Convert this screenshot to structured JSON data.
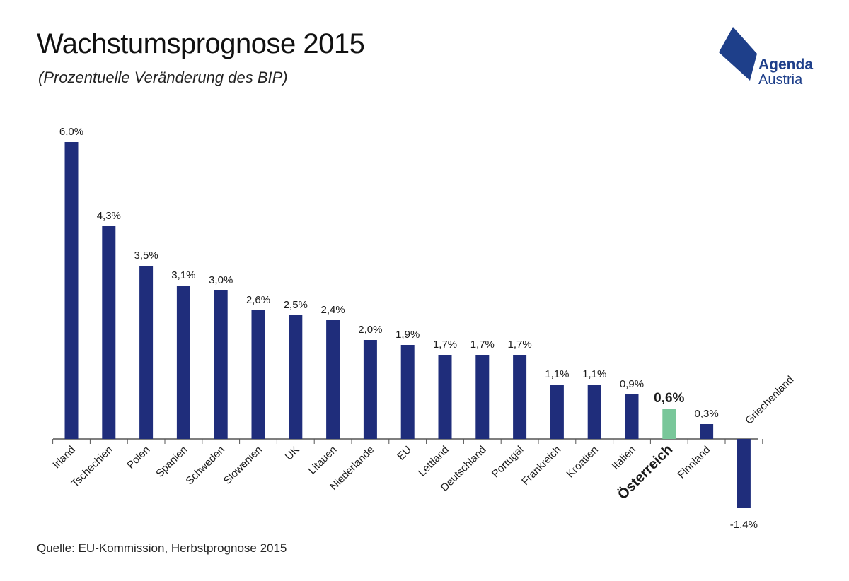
{
  "header": {
    "title": "Wachstumsprognose 2015",
    "subtitle": "(Prozentuelle Veränderung des BIP)"
  },
  "logo": {
    "line1": "Agenda",
    "line2": "Austria",
    "color": "#1e3f8a"
  },
  "footer": {
    "source": "Quelle: EU-Kommission, Herbstprognose 2015"
  },
  "colors": {
    "bar": "#1f2d7b",
    "highlight_bar": "#79c79a",
    "axis": "#555555"
  },
  "chart_data": {
    "type": "bar",
    "title": "Wachstumsprognose 2015",
    "subtitle": "(Prozentuelle Veränderung des BIP)",
    "categories": [
      "Irland",
      "Tschechien",
      "Polen",
      "Spanien",
      "Schweden",
      "Slowenien",
      "UK",
      "Litauen",
      "Niederlande",
      "EU",
      "Lettland",
      "Deutschland",
      "Portugal",
      "Frankreich",
      "Kroatien",
      "Italien",
      "Österreich",
      "Finnland",
      "Griechenland"
    ],
    "values": [
      6.0,
      4.3,
      3.5,
      3.1,
      3.0,
      2.6,
      2.5,
      2.4,
      2.0,
      1.9,
      1.7,
      1.7,
      1.7,
      1.1,
      1.1,
      0.9,
      0.6,
      0.3,
      -1.4
    ],
    "value_labels": [
      "6,0%",
      "4,3%",
      "3,5%",
      "3,1%",
      "3,0%",
      "2,6%",
      "2,5%",
      "2,4%",
      "2,0%",
      "1,9%",
      "1,7%",
      "1,7%",
      "1,7%",
      "1,1%",
      "1,1%",
      "0,9%",
      "0,6%",
      "0,3%",
      "-1,4%"
    ],
    "highlight": "Österreich",
    "ylim": [
      -1.4,
      6.0
    ],
    "grid": false,
    "legend": "none",
    "xlabel": "",
    "ylabel": ""
  }
}
